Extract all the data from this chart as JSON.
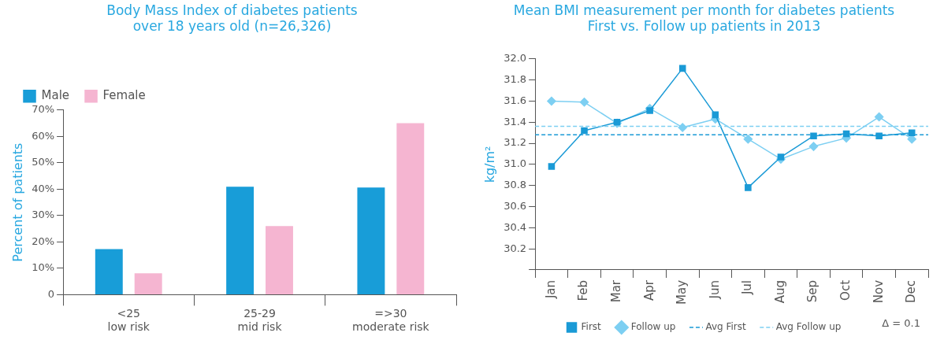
{
  "chart_data": [
    {
      "type": "bar",
      "title": "Body Mass Index of diabetes patients\nover 18 years old (n=26,326)",
      "ylabel": "Percent of patients",
      "categories": [
        "<25\nlow risk",
        "25-29\nmid risk",
        "=>30\nmoderate risk"
      ],
      "series": [
        {
          "name": "Male",
          "color": "#189dd8",
          "values": [
            17.3,
            40.9,
            40.6
          ]
        },
        {
          "name": "Female",
          "color": "#f5b5d1",
          "values": [
            8.1,
            26.0,
            65.0
          ]
        }
      ],
      "ylim": [
        0,
        70
      ],
      "yticks": [
        {
          "value": 0,
          "label": "0"
        },
        {
          "value": 10,
          "label": "10%"
        },
        {
          "value": 20,
          "label": "20%"
        },
        {
          "value": 30,
          "label": "30%"
        },
        {
          "value": 40,
          "label": "40%"
        },
        {
          "value": 50,
          "label": "50%"
        },
        {
          "value": 60,
          "label": "60%"
        },
        {
          "value": 70,
          "label": "70%"
        }
      ],
      "grid": false,
      "legend": "top left"
    },
    {
      "type": "line",
      "title": "Mean BMI measurement per month for diabetes patients\nFirst vs. Follow up patients in 2013",
      "ylabel": "kg/m²",
      "categories": [
        "Jan",
        "Feb",
        "Mar",
        "Apr",
        "May",
        "Jun",
        "Jul",
        "Aug",
        "Sep",
        "Oct",
        "Nov",
        "Dec"
      ],
      "series": [
        {
          "name": "First",
          "color": "#1a9ad6",
          "marker": "square",
          "values": [
            30.98,
            31.32,
            31.4,
            31.51,
            31.91,
            31.47,
            30.78,
            31.07,
            31.27,
            31.29,
            31.27,
            31.3
          ]
        },
        {
          "name": "Follow up",
          "color": "#7dcff2",
          "marker": "diamond",
          "values": [
            31.6,
            31.59,
            31.39,
            31.53,
            31.35,
            31.43,
            31.24,
            31.05,
            31.17,
            31.25,
            31.45,
            31.24
          ]
        }
      ],
      "ref_lines": [
        {
          "axis": "y",
          "value": 31.28,
          "label": "Avg First",
          "color": "#1a9ad6",
          "line_style": "dashed"
        },
        {
          "axis": "y",
          "value": 31.36,
          "label": "Avg Follow up",
          "color": "#7dcff2",
          "line_style": "dashed"
        }
      ],
      "ylim": [
        30.0,
        32.0
      ],
      "yticks": [
        {
          "value": 30.0,
          "label": null
        },
        {
          "value": 30.2,
          "label": "30.2"
        },
        {
          "value": 30.4,
          "label": "30.4"
        },
        {
          "value": 30.6,
          "label": "30.6"
        },
        {
          "value": 30.8,
          "label": "30.8"
        },
        {
          "value": 31.0,
          "label": "31.0"
        },
        {
          "value": 31.2,
          "label": "31.2"
        },
        {
          "value": 31.4,
          "label": "31.4"
        },
        {
          "value": 31.6,
          "label": "31.6"
        },
        {
          "value": 31.8,
          "label": "31.8"
        },
        {
          "value": 32.0,
          "label": "32.0"
        }
      ],
      "annotations": [
        "Δ = 0.1"
      ],
      "grid": false,
      "legend": "bottom"
    }
  ]
}
